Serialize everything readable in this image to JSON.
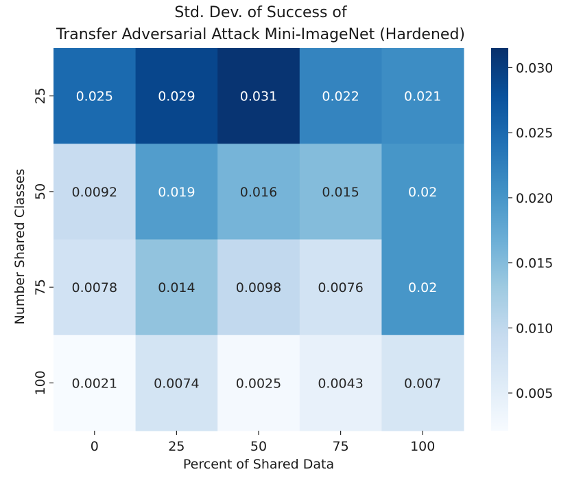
{
  "chart_data": {
    "type": "heatmap",
    "title_line1": "Std. Dev. of Success of",
    "title_line2": "Transfer Adversarial Attack Mini-ImageNet (Hardened)",
    "xlabel": "Percent of Shared Data",
    "ylabel": "Number Shared Classes",
    "x_categories": [
      "0",
      "25",
      "50",
      "75",
      "100"
    ],
    "y_categories": [
      "25",
      "50",
      "75",
      "100"
    ],
    "values": [
      [
        0.025,
        0.029,
        0.031,
        0.022,
        0.021
      ],
      [
        0.0092,
        0.019,
        0.016,
        0.015,
        0.02
      ],
      [
        0.0078,
        0.014,
        0.0098,
        0.0076,
        0.02
      ],
      [
        0.0021,
        0.0074,
        0.0025,
        0.0043,
        0.007
      ]
    ],
    "labels": [
      [
        "0.025",
        "0.029",
        "0.031",
        "0.022",
        "0.021"
      ],
      [
        "0.0092",
        "0.019",
        "0.016",
        "0.015",
        "0.02"
      ],
      [
        "0.0078",
        "0.014",
        "0.0098",
        "0.0076",
        "0.02"
      ],
      [
        "0.0021",
        "0.0074",
        "0.0025",
        "0.0043",
        "0.007"
      ]
    ],
    "colorbar_range": [
      0.0021,
      0.0315
    ],
    "colorbar_ticks": [
      "0.005",
      "0.010",
      "0.015",
      "0.020",
      "0.025",
      "0.030"
    ],
    "colorbar_tick_values": [
      0.005,
      0.01,
      0.015,
      0.02,
      0.025,
      0.03
    ],
    "colormap": "Blues",
    "colormap_stops": [
      "#f7fbff",
      "#deebf7",
      "#c6dbef",
      "#9ecae1",
      "#6baed6",
      "#4292c6",
      "#2171b5",
      "#08519c",
      "#08306b"
    ]
  }
}
